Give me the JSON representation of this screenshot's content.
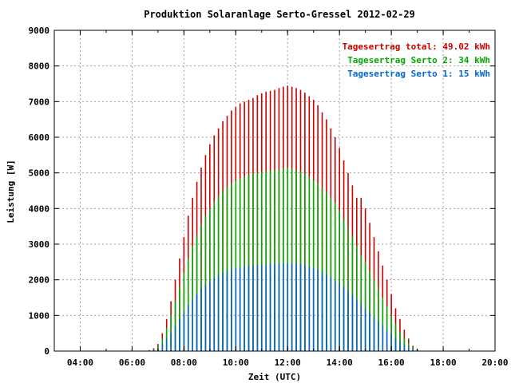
{
  "chart_data": {
    "type": "bar",
    "title": "Produktion Solaranlage Serto-Gressel 2012-02-29",
    "xlabel": "Zeit (UTC)",
    "ylabel": "Leistung [W]",
    "xlim": [
      "03:00",
      "20:00"
    ],
    "ylim": [
      0,
      9000
    ],
    "grid": true,
    "legend_position": "top-right",
    "x_tick_labels": [
      "04:00",
      "06:00",
      "08:00",
      "10:00",
      "12:00",
      "14:00",
      "16:00",
      "18:00",
      "20:00"
    ],
    "y_tick_labels": [
      "0",
      "1000",
      "2000",
      "3000",
      "4000",
      "5000",
      "6000",
      "7000",
      "8000",
      "9000"
    ],
    "x": [
      "06:30",
      "06:40",
      "06:50",
      "07:00",
      "07:10",
      "07:20",
      "07:30",
      "07:40",
      "07:50",
      "08:00",
      "08:10",
      "08:20",
      "08:30",
      "08:40",
      "08:50",
      "09:00",
      "09:10",
      "09:20",
      "09:30",
      "09:40",
      "09:50",
      "10:00",
      "10:10",
      "10:20",
      "10:30",
      "10:40",
      "10:50",
      "11:00",
      "11:10",
      "11:20",
      "11:30",
      "11:40",
      "11:50",
      "12:00",
      "12:10",
      "12:20",
      "12:30",
      "12:40",
      "12:50",
      "13:00",
      "13:10",
      "13:20",
      "13:30",
      "13:40",
      "13:50",
      "14:00",
      "14:10",
      "14:20",
      "14:30",
      "14:40",
      "14:50",
      "15:00",
      "15:10",
      "15:20",
      "15:30",
      "15:40",
      "15:50",
      "16:00",
      "16:10",
      "16:20",
      "16:30",
      "16:40",
      "16:50",
      "17:00",
      "17:10"
    ],
    "series": [
      {
        "name": "Tagesertrag total: 49.02 kWh",
        "color": "#cc0000",
        "values": [
          0,
          30,
          80,
          200,
          500,
          900,
          1400,
          2000,
          2600,
          3200,
          3800,
          4300,
          4750,
          5150,
          5500,
          5800,
          6050,
          6250,
          6450,
          6600,
          6750,
          6850,
          6950,
          7000,
          7050,
          7100,
          7180,
          7230,
          7280,
          7300,
          7330,
          7380,
          7420,
          7450,
          7420,
          7380,
          7330,
          7250,
          7150,
          7050,
          6900,
          6700,
          6500,
          6250,
          6000,
          5700,
          5350,
          5000,
          4650,
          4300,
          4300,
          4000,
          3600,
          3200,
          2800,
          2400,
          2000,
          1600,
          1200,
          900,
          600,
          350,
          150,
          50,
          0
        ]
      },
      {
        "name": "Tagesertrag Serto 2: 34 kWh",
        "color": "#00aa00",
        "values": [
          0,
          20,
          60,
          150,
          350,
          650,
          1000,
          1400,
          1800,
          2200,
          2600,
          2950,
          3250,
          3550,
          3800,
          4000,
          4200,
          4350,
          4500,
          4600,
          4700,
          4780,
          4850,
          4900,
          4950,
          4980,
          5000,
          5020,
          5040,
          5060,
          5080,
          5100,
          5120,
          5150,
          5120,
          5080,
          5040,
          4980,
          4900,
          4800,
          4700,
          4580,
          4450,
          4300,
          4150,
          3950,
          3700,
          3450,
          3200,
          2950,
          2700,
          2500,
          2250,
          2000,
          1750,
          1500,
          1250,
          1000,
          750,
          550,
          380,
          230,
          110,
          40,
          0
        ]
      },
      {
        "name": "Tagesertrag Serto 1: 15 kWh",
        "color": "#0066cc",
        "values": [
          0,
          10,
          30,
          80,
          200,
          350,
          500,
          700,
          900,
          1100,
          1300,
          1450,
          1600,
          1750,
          1850,
          1950,
          2050,
          2130,
          2200,
          2250,
          2300,
          2330,
          2350,
          2370,
          2390,
          2400,
          2410,
          2420,
          2430,
          2440,
          2445,
          2450,
          2455,
          2460,
          2455,
          2450,
          2430,
          2400,
          2370,
          2330,
          2280,
          2220,
          2150,
          2070,
          1990,
          1900,
          1800,
          1680,
          1560,
          1440,
          1320,
          1200,
          1080,
          960,
          840,
          720,
          600,
          480,
          360,
          260,
          180,
          110,
          50,
          20,
          0
        ]
      }
    ]
  }
}
